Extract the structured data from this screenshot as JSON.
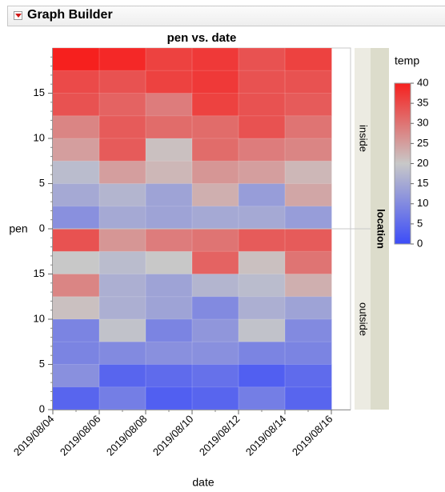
{
  "window": {
    "title": "Graph Builder",
    "disclosure_icon": "red-triangle-menu-icon"
  },
  "chart_data": {
    "type": "heatmap",
    "title": "pen vs. date",
    "xlabel": "date",
    "ylabel": "pen",
    "x_tick_labels": [
      "2019/08/04",
      "2019/08/06",
      "2019/08/08",
      "2019/08/10",
      "2019/08/12",
      "2019/08/14",
      "2019/08/16"
    ],
    "pen_tick_labels": [
      "0",
      "5",
      "10",
      "15"
    ],
    "facet_label": "location",
    "facets": [
      {
        "name": "inside",
        "rows_top_to_bottom": [
          [
            40,
            39,
            36,
            37,
            34,
            36
          ],
          [
            35,
            34,
            36,
            37,
            34,
            34
          ],
          [
            34,
            32,
            29,
            36,
            34,
            33
          ],
          [
            28,
            33,
            31,
            31,
            34,
            30
          ],
          [
            25,
            33,
            21,
            31,
            29,
            28
          ],
          [
            18,
            25,
            22,
            26,
            25,
            22
          ],
          [
            15,
            17,
            14,
            23,
            13,
            24
          ],
          [
            11,
            15,
            14,
            15,
            15,
            13
          ]
        ]
      },
      {
        "name": "outside",
        "rows_top_to_bottom": [
          [
            34,
            26,
            29,
            30,
            33,
            33
          ],
          [
            20,
            18,
            20,
            32,
            21,
            30
          ],
          [
            28,
            16,
            14,
            17,
            18,
            23
          ],
          [
            21,
            16,
            14,
            10,
            16,
            14
          ],
          [
            9,
            19,
            9,
            12,
            19,
            10
          ],
          [
            9,
            10,
            11,
            11,
            9,
            9
          ],
          [
            11,
            4,
            5,
            6,
            3,
            5
          ],
          [
            4,
            8,
            3,
            4,
            8,
            4
          ]
        ]
      }
    ],
    "legend": {
      "title": "temp",
      "tick_labels": [
        "0",
        "5",
        "10",
        "15",
        "20",
        "25",
        "30",
        "35",
        "40"
      ],
      "range": [
        0,
        40
      ],
      "colors": {
        "low": "#3c4cf8",
        "mid": "#c8c8c8",
        "high": "#f6201e"
      }
    }
  }
}
